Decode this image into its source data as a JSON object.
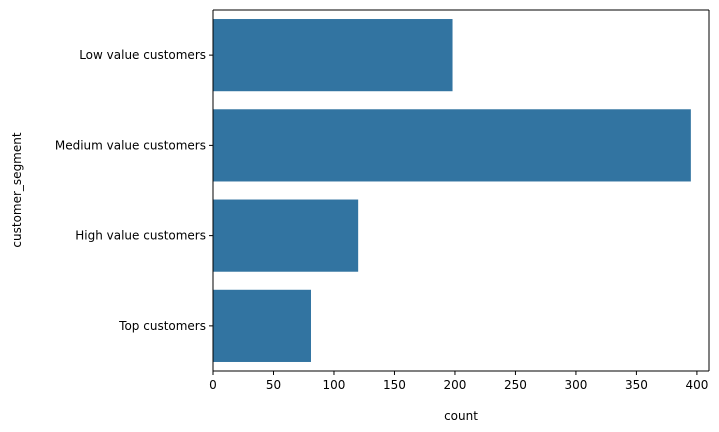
{
  "chart_data": {
    "type": "bar",
    "orientation": "horizontal",
    "categories": [
      "Low value customers",
      "Medium value customers",
      "High value customers",
      "Top customers"
    ],
    "values": [
      198,
      395,
      120,
      81
    ],
    "xlabel": "count",
    "ylabel": "customer_segment",
    "xlim": [
      0,
      410
    ],
    "xticks": [
      0,
      50,
      100,
      150,
      200,
      250,
      300,
      350,
      400
    ],
    "grid": false,
    "bar_color": "#3274a1"
  }
}
